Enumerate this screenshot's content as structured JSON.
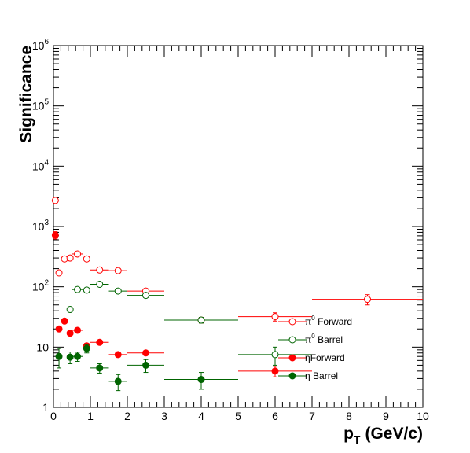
{
  "chart_data": {
    "type": "scatter",
    "title": "",
    "xlabel": "p",
    "xlabel_sub": "T",
    "xlabel_unit": "(GeV/c)",
    "ylabel": "Significance",
    "xlim": [
      0,
      10
    ],
    "ylim": [
      1,
      1000000
    ],
    "yscale": "log",
    "x_ticks": [
      "0",
      "1",
      "2",
      "3",
      "4",
      "5",
      "6",
      "7",
      "8",
      "9",
      "10"
    ],
    "y_ticks": [
      {
        "base": "1",
        "exp": ""
      },
      {
        "base": "10",
        "exp": ""
      },
      {
        "base": "10",
        "exp": "2"
      },
      {
        "base": "10",
        "exp": "3"
      },
      {
        "base": "10",
        "exp": "4"
      },
      {
        "base": "10",
        "exp": "5"
      },
      {
        "base": "10",
        "exp": "6"
      }
    ],
    "legend_position": "lower-right",
    "series": [
      {
        "name": "π0 Forward",
        "legend_symbol": "π",
        "legend_sup": "0",
        "legend_rest": " Forward",
        "color": "#ff0000",
        "marker": "open-circle",
        "points": [
          {
            "x": 0.05,
            "y": 2700,
            "xerr": 0.05,
            "yerr": 0
          },
          {
            "x": 0.15,
            "y": 170,
            "xerr": 0.05,
            "yerr": 0
          },
          {
            "x": 0.3,
            "y": 290,
            "xerr": 0.1,
            "yerr": 0
          },
          {
            "x": 0.45,
            "y": 300,
            "xerr": 0.05,
            "yerr": 0
          },
          {
            "x": 0.65,
            "y": 350,
            "xerr": 0.15,
            "yerr": 0
          },
          {
            "x": 0.9,
            "y": 290,
            "xerr": 0.1,
            "yerr": 0
          },
          {
            "x": 1.25,
            "y": 190,
            "xerr": 0.25,
            "yerr": 0
          },
          {
            "x": 1.75,
            "y": 185,
            "xerr": 0.25,
            "yerr": 0
          },
          {
            "x": 2.5,
            "y": 85,
            "xerr": 0.5,
            "yerr": 0
          },
          {
            "x": 4.0,
            "y": 28,
            "xerr": 1.0,
            "yerr": 3
          },
          {
            "x": 6.0,
            "y": 32,
            "xerr": 1.0,
            "yerr": 5
          },
          {
            "x": 8.5,
            "y": 62,
            "xerr": 1.5,
            "yerr": 12
          }
        ]
      },
      {
        "name": "π0 Barrel",
        "legend_symbol": "π",
        "legend_sup": "0",
        "legend_rest": " Barrel",
        "color": "#006400",
        "marker": "open-circle",
        "points": [
          {
            "x": 0.45,
            "y": 42,
            "xerr": 0.05,
            "yerr": 0
          },
          {
            "x": 0.65,
            "y": 90,
            "xerr": 0.15,
            "yerr": 0
          },
          {
            "x": 0.9,
            "y": 88,
            "xerr": 0.1,
            "yerr": 0
          },
          {
            "x": 1.25,
            "y": 110,
            "xerr": 0.25,
            "yerr": 0
          },
          {
            "x": 1.75,
            "y": 85,
            "xerr": 0.25,
            "yerr": 0
          },
          {
            "x": 2.5,
            "y": 72,
            "xerr": 0.5,
            "yerr": 0
          },
          {
            "x": 4.0,
            "y": 28,
            "xerr": 1.0,
            "yerr": 3
          },
          {
            "x": 6.0,
            "y": 7.5,
            "xerr": 1.0,
            "yerr": 2.5
          }
        ]
      },
      {
        "name": "η Forward",
        "legend_symbol": "η",
        "legend_sup": "",
        "legend_rest": "Forward",
        "color": "#ff0000",
        "marker": "filled-circle",
        "points": [
          {
            "x": 0.05,
            "y": 720,
            "xerr": 0.05,
            "yerr": 100
          },
          {
            "x": 0.15,
            "y": 20,
            "xerr": 0.05,
            "yerr": 0
          },
          {
            "x": 0.3,
            "y": 27,
            "xerr": 0.1,
            "yerr": 0
          },
          {
            "x": 0.45,
            "y": 17,
            "xerr": 0.05,
            "yerr": 0
          },
          {
            "x": 0.65,
            "y": 19,
            "xerr": 0.15,
            "yerr": 0
          },
          {
            "x": 0.9,
            "y": 10.5,
            "xerr": 0.1,
            "yerr": 1
          },
          {
            "x": 1.25,
            "y": 12,
            "xerr": 0.25,
            "yerr": 0
          },
          {
            "x": 1.75,
            "y": 7.5,
            "xerr": 0.25,
            "yerr": 0
          },
          {
            "x": 2.5,
            "y": 8,
            "xerr": 0.5,
            "yerr": 0
          },
          {
            "x": 6.0,
            "y": 4,
            "xerr": 1.0,
            "yerr": 0.8
          }
        ]
      },
      {
        "name": "η Barrel",
        "legend_symbol": "η",
        "legend_sup": "",
        "legend_rest": " Barrel",
        "color": "#006400",
        "marker": "filled-circle",
        "points": [
          {
            "x": 0.15,
            "y": 7,
            "xerr": 0.05,
            "yerr": 2.5
          },
          {
            "x": 0.45,
            "y": 6.8,
            "xerr": 0.05,
            "yerr": 1.5
          },
          {
            "x": 0.65,
            "y": 7,
            "xerr": 0.15,
            "yerr": 1.2
          },
          {
            "x": 0.9,
            "y": 9.5,
            "xerr": 0.1,
            "yerr": 1.5
          },
          {
            "x": 1.25,
            "y": 4.5,
            "xerr": 0.25,
            "yerr": 0.8
          },
          {
            "x": 1.75,
            "y": 2.7,
            "xerr": 0.25,
            "yerr": 0.8
          },
          {
            "x": 2.5,
            "y": 5,
            "xerr": 0.5,
            "yerr": 1.2
          },
          {
            "x": 4.0,
            "y": 2.9,
            "xerr": 1.0,
            "yerr": 0.9
          }
        ]
      }
    ]
  }
}
